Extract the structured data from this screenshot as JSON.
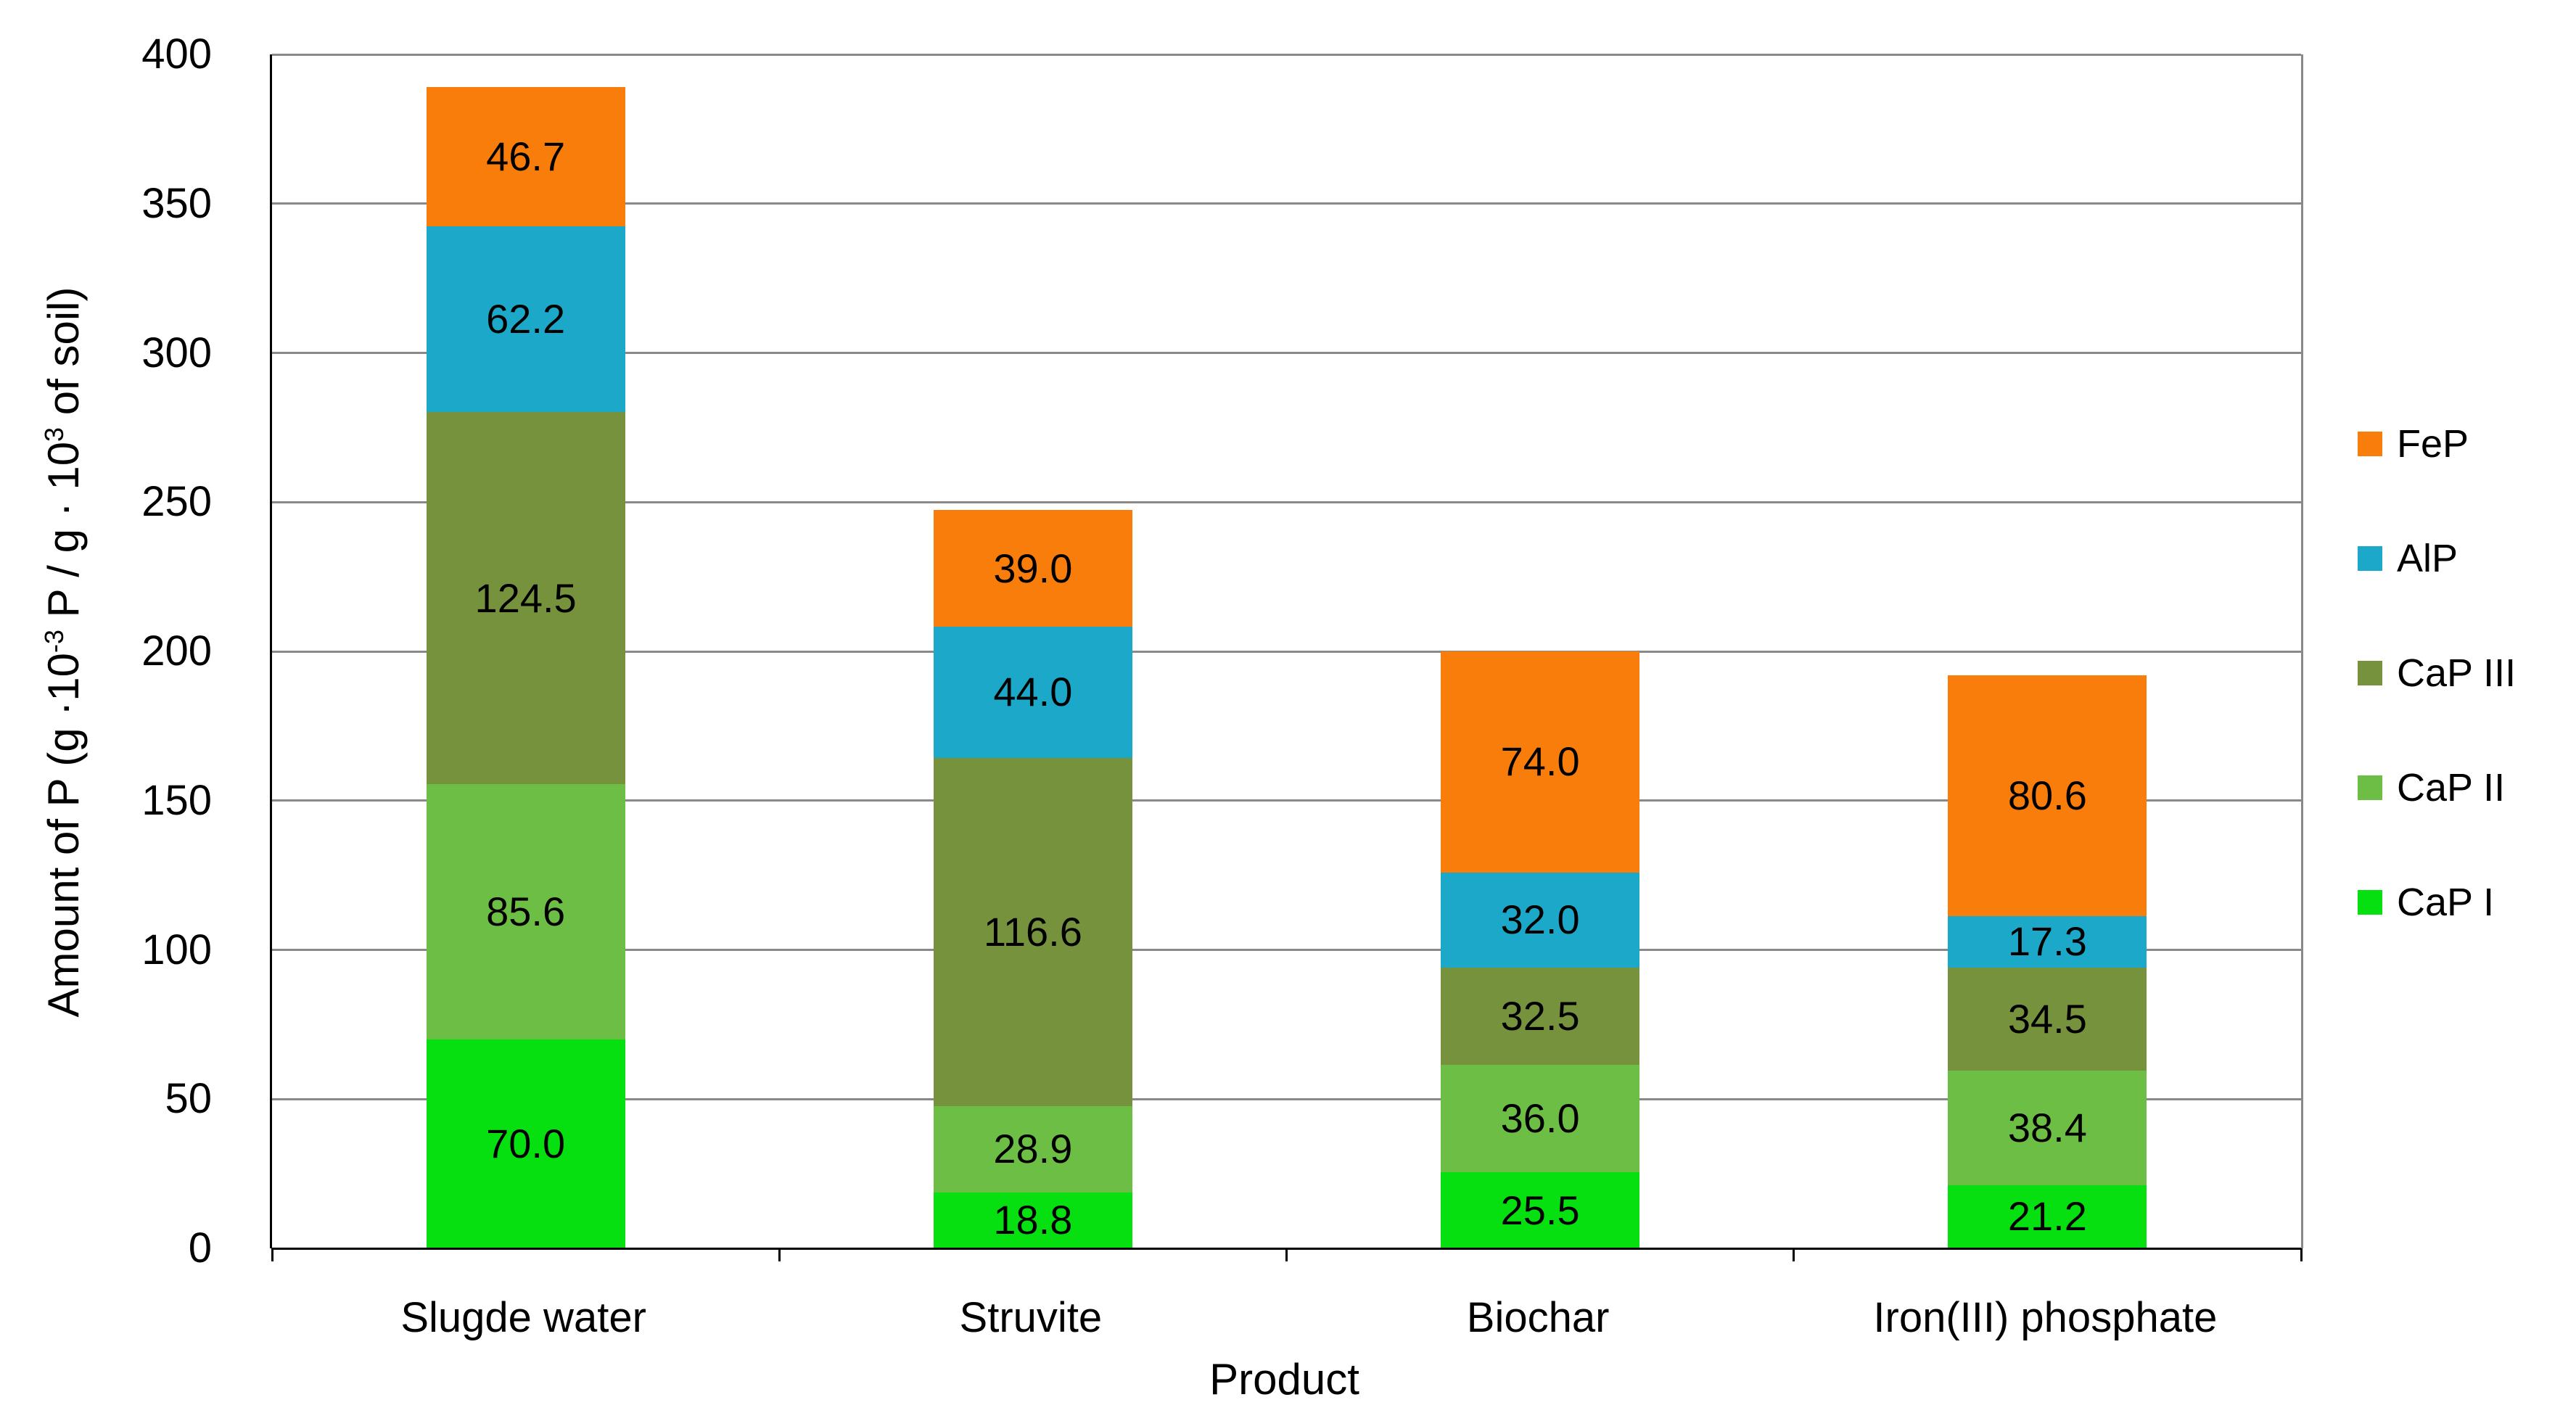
{
  "chart_data": {
    "type": "bar",
    "stacked": true,
    "xlabel": "Product",
    "ylabel_parts": {
      "pre": "Amount of P (g ·10",
      "sup1": "-3",
      "mid": " P / g · 10",
      "sup2": "3",
      "post": " of soil)"
    },
    "ylim": [
      0,
      400
    ],
    "ytick_step": 50,
    "ytick_labels": [
      "0",
      "50",
      "100",
      "150",
      "200",
      "250",
      "300",
      "350",
      "400"
    ],
    "grid": true,
    "legend_position": "right",
    "value_decimals": 1,
    "categories": [
      "Slugde water",
      "Struvite",
      "Biochar",
      "Iron(III) phosphate"
    ],
    "series": [
      {
        "name": "CaP I",
        "color": "#06DF10",
        "values": [
          70.0,
          18.8,
          25.5,
          21.2
        ]
      },
      {
        "name": "CaP II",
        "color": "#6DBE45",
        "values": [
          85.6,
          28.9,
          36.0,
          38.4
        ]
      },
      {
        "name": "CaP III",
        "color": "#76923C",
        "values": [
          124.5,
          116.6,
          32.5,
          34.5
        ]
      },
      {
        "name": "AlP",
        "color": "#1BA8C9",
        "values": [
          62.2,
          44.0,
          32.0,
          17.3
        ]
      },
      {
        "name": "FeP",
        "color": "#F97D0B",
        "values": [
          46.7,
          39.0,
          74.0,
          80.6
        ]
      }
    ],
    "legend_order": [
      "FeP",
      "AlP",
      "CaP III",
      "CaP II",
      "CaP I"
    ],
    "colors": {
      "gridline": "#898989",
      "axis": "#000000",
      "background": "#ffffff"
    }
  }
}
